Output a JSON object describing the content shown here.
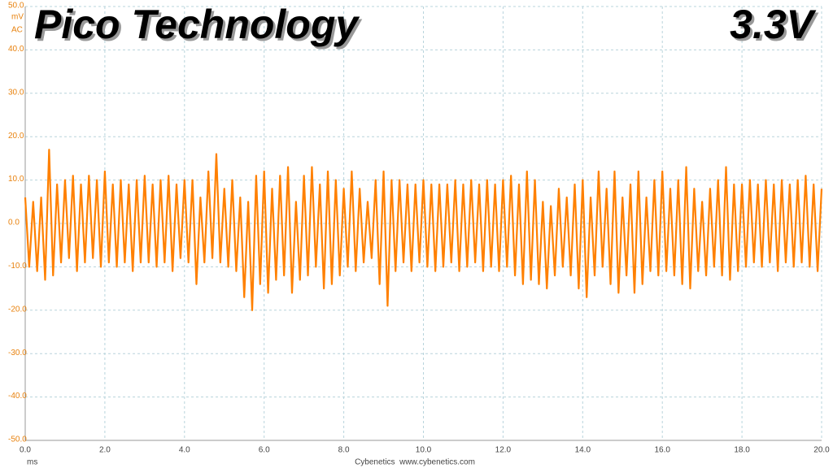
{
  "chart_data": {
    "type": "line",
    "title": "Pico Technology",
    "annotation": "3.3V",
    "y_unit": "mV",
    "y_mode": "AC",
    "x_unit": "ms",
    "footer": "Cybenetics  www.cybenetics.com",
    "xlim": [
      0,
      20
    ],
    "ylim": [
      -50,
      50
    ],
    "xticks": [
      {
        "value": 0,
        "label": "0.0"
      },
      {
        "value": 2,
        "label": "2.0"
      },
      {
        "value": 4,
        "label": "4.0"
      },
      {
        "value": 6,
        "label": "6.0"
      },
      {
        "value": 8,
        "label": "8.0"
      },
      {
        "value": 10,
        "label": "10.0"
      },
      {
        "value": 12,
        "label": "12.0"
      },
      {
        "value": 14,
        "label": "14.0"
      },
      {
        "value": 16,
        "label": "16.0"
      },
      {
        "value": 18,
        "label": "18.0"
      },
      {
        "value": 20,
        "label": "20.0"
      }
    ],
    "yticks": [
      {
        "value": 50,
        "label": "50.0"
      },
      {
        "value": 40,
        "label": "40.0"
      },
      {
        "value": 30,
        "label": "30.0"
      },
      {
        "value": 20,
        "label": "20.0"
      },
      {
        "value": 10,
        "label": "10.0"
      },
      {
        "value": 0,
        "label": "0.0"
      },
      {
        "value": -10,
        "label": "-10.0"
      },
      {
        "value": -20,
        "label": "-20.0"
      },
      {
        "value": -30,
        "label": "-30.0"
      },
      {
        "value": -40,
        "label": "-40.0"
      },
      {
        "value": -50,
        "label": "-50.0"
      }
    ],
    "grid": true,
    "x": [
      0,
      0.1,
      0.2,
      0.3,
      0.4,
      0.5,
      0.6,
      0.7,
      0.8,
      0.9,
      1,
      1.1,
      1.2,
      1.3,
      1.4,
      1.5,
      1.6,
      1.7,
      1.8,
      1.9,
      2,
      2.1,
      2.2,
      2.3,
      2.4,
      2.5,
      2.6,
      2.7,
      2.8,
      2.9,
      3,
      3.1,
      3.2,
      3.3,
      3.4,
      3.5,
      3.6,
      3.7,
      3.8,
      3.9,
      4,
      4.1,
      4.2,
      4.3,
      4.4,
      4.5,
      4.6,
      4.7,
      4.8,
      4.9,
      5,
      5.1,
      5.2,
      5.3,
      5.4,
      5.5,
      5.6,
      5.7,
      5.8,
      5.9,
      6,
      6.1,
      6.2,
      6.3,
      6.4,
      6.5,
      6.6,
      6.7,
      6.8,
      6.9,
      7,
      7.1,
      7.2,
      7.3,
      7.4,
      7.5,
      7.6,
      7.7,
      7.8,
      7.9,
      8,
      8.1,
      8.2,
      8.3,
      8.4,
      8.5,
      8.6,
      8.7,
      8.8,
      8.9,
      9,
      9.1,
      9.2,
      9.3,
      9.4,
      9.5,
      9.6,
      9.7,
      9.8,
      9.9,
      10,
      10.1,
      10.2,
      10.3,
      10.4,
      10.5,
      10.6,
      10.7,
      10.8,
      10.9,
      11,
      11.1,
      11.2,
      11.3,
      11.4,
      11.5,
      11.6,
      11.7,
      11.8,
      11.9,
      12,
      12.1,
      12.2,
      12.3,
      12.4,
      12.5,
      12.6,
      12.7,
      12.8,
      12.9,
      13,
      13.1,
      13.2,
      13.3,
      13.4,
      13.5,
      13.6,
      13.7,
      13.8,
      13.9,
      14,
      14.1,
      14.2,
      14.3,
      14.4,
      14.5,
      14.6,
      14.7,
      14.8,
      14.9,
      15,
      15.1,
      15.2,
      15.3,
      15.4,
      15.5,
      15.6,
      15.7,
      15.8,
      15.9,
      16,
      16.1,
      16.2,
      16.3,
      16.4,
      16.5,
      16.6,
      16.7,
      16.8,
      16.9,
      17,
      17.1,
      17.2,
      17.3,
      17.4,
      17.5,
      17.6,
      17.7,
      17.8,
      17.9,
      18,
      18.1,
      18.2,
      18.3,
      18.4,
      18.5,
      18.6,
      18.7,
      18.8,
      18.9,
      19,
      19.1,
      19.2,
      19.3,
      19.4,
      19.5,
      19.6,
      19.7,
      19.8,
      19.9,
      20
    ],
    "series": [
      {
        "color": "#ff8000",
        "values": [
          6,
          -10,
          5,
          -11,
          6,
          -13,
          17,
          -12,
          9,
          -9,
          10,
          -8,
          11,
          -11,
          9,
          -9,
          11,
          -8,
          10,
          -10,
          12,
          -9,
          9,
          -10,
          10,
          -9,
          9,
          -11,
          10,
          -9,
          11,
          -9,
          9,
          -10,
          10,
          -9,
          11,
          -11,
          9,
          -8,
          10,
          -9,
          10,
          -14,
          6,
          -9,
          12,
          -8,
          16,
          -9,
          8,
          -10,
          10,
          -11,
          6,
          -17,
          5,
          -20,
          11,
          -14,
          12,
          -16,
          8,
          -13,
          11,
          -12,
          13,
          -16,
          5,
          -13,
          11,
          -12,
          13,
          -10,
          9,
          -15,
          12,
          -14,
          10,
          -12,
          8,
          -10,
          12,
          -11,
          8,
          -9,
          5,
          -8,
          10,
          -14,
          12,
          -19,
          10,
          -11,
          10,
          -9,
          9,
          -11,
          9,
          -9,
          10,
          -10,
          9,
          -11,
          9,
          -10,
          9,
          -9,
          10,
          -11,
          9,
          -10,
          10,
          -9,
          9,
          -11,
          10,
          -10,
          9,
          -11,
          10,
          -10,
          11,
          -12,
          9,
          -14,
          12,
          -13,
          10,
          -14,
          5,
          -15,
          4,
          -12,
          8,
          -10,
          6,
          -12,
          9,
          -15,
          10,
          -17,
          6,
          -12,
          12,
          -10,
          8,
          -14,
          12,
          -16,
          6,
          -12,
          9,
          -16,
          12,
          -14,
          6,
          -11,
          10,
          -12,
          12,
          -11,
          8,
          -12,
          10,
          -14,
          13,
          -15,
          8,
          -11,
          5,
          -12,
          8,
          -10,
          10,
          -12,
          13,
          -13,
          9,
          -11,
          9,
          -10,
          10,
          -9,
          9,
          -10,
          10,
          -9,
          9,
          -11,
          10,
          -9,
          9,
          -10,
          10,
          -9,
          11,
          -10,
          9,
          -11,
          8
        ]
      }
    ]
  }
}
